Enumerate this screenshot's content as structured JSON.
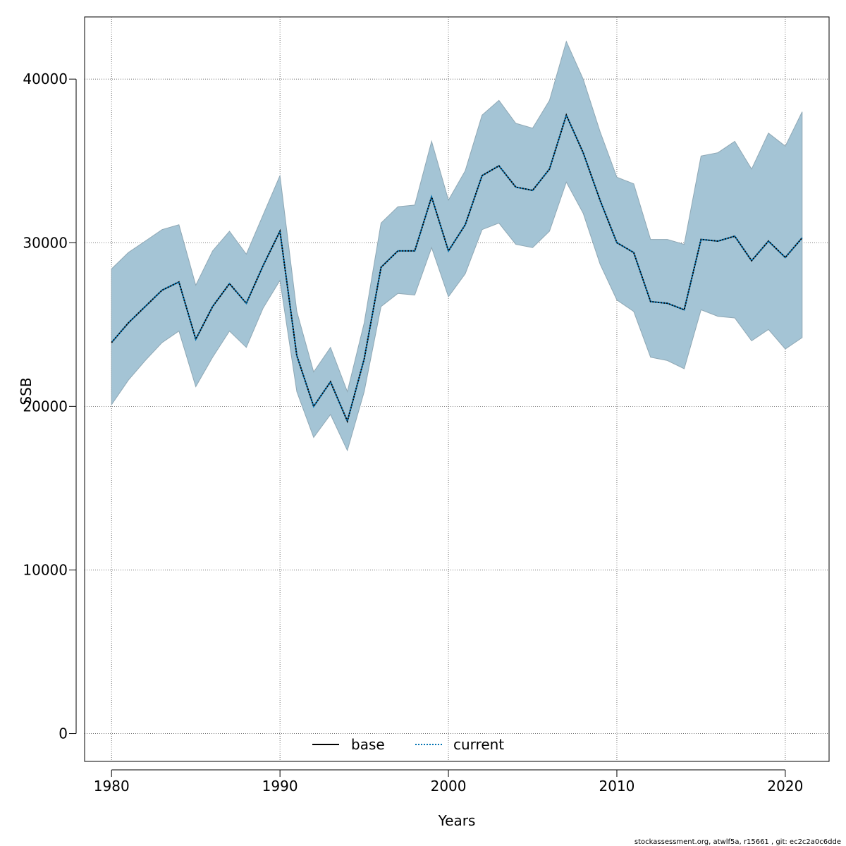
{
  "chart_data": {
    "type": "line",
    "xlabel": "Years",
    "ylabel": "SSB",
    "xlim": [
      1978.4,
      2022.6
    ],
    "ylim": [
      -1700,
      43800
    ],
    "xticks": [
      1980,
      1990,
      2000,
      2010,
      2020
    ],
    "yticks": [
      0,
      10000,
      20000,
      30000,
      40000
    ],
    "grid": true,
    "legend_position": "bottom-center",
    "legend": [
      {
        "label": "base",
        "style": "solid",
        "color": "#000000"
      },
      {
        "label": "current",
        "style": "dotted",
        "color": "#0072B2"
      }
    ],
    "band_color": "#A4C4D5",
    "x": [
      1980,
      1981,
      1982,
      1983,
      1984,
      1985,
      1986,
      1987,
      1988,
      1989,
      1990,
      1991,
      1992,
      1993,
      1994,
      1995,
      1996,
      1997,
      1998,
      1999,
      2000,
      2001,
      2002,
      2003,
      2004,
      2005,
      2006,
      2007,
      2008,
      2009,
      2010,
      2011,
      2012,
      2013,
      2014,
      2015,
      2016,
      2017,
      2018,
      2019,
      2020,
      2021
    ],
    "series": [
      {
        "name": "current",
        "style": "dotted",
        "values": [
          23900,
          25100,
          26100,
          27100,
          27600,
          24100,
          26100,
          27500,
          26300,
          28600,
          30700,
          23100,
          20000,
          21500,
          19100,
          22900,
          28500,
          29500,
          29500,
          32800,
          29500,
          31100,
          34100,
          34700,
          33400,
          33200,
          34500,
          37800,
          35500,
          32600,
          30000,
          29400,
          26400,
          26300,
          25900,
          30200,
          30100,
          30400,
          28900,
          30100,
          29100,
          30300
        ]
      },
      {
        "name": "base",
        "style": "solid",
        "values": [
          23900,
          25100,
          26100,
          27100,
          27600,
          24100,
          26100,
          27500,
          26300,
          28600,
          30700,
          23100,
          20000,
          21500,
          19100,
          22900,
          28500,
          29500,
          29500,
          32800,
          29500,
          31100,
          34100,
          34700,
          33400,
          33200,
          34500,
          37800,
          35500,
          32600,
          30000,
          29400,
          26400,
          26300,
          25900,
          30200,
          30100,
          30400,
          28900,
          30100,
          29100,
          30300
        ]
      }
    ],
    "band_upper": [
      28400,
      29400,
      30100,
      30800,
      31100,
      27400,
      29500,
      30700,
      29300,
      31700,
      34100,
      25800,
      22100,
      23600,
      20900,
      25100,
      31200,
      32200,
      32300,
      36200,
      32600,
      34400,
      37800,
      38700,
      37300,
      37000,
      38700,
      42300,
      40000,
      36800,
      34000,
      33600,
      30200,
      30200,
      29900,
      35300,
      35500,
      36200,
      34500,
      36700,
      35900,
      38000
    ],
    "band_lower": [
      20100,
      21600,
      22800,
      23900,
      24600,
      21200,
      23000,
      24600,
      23600,
      26000,
      27700,
      20900,
      18100,
      19500,
      17300,
      20900,
      26100,
      26900,
      26800,
      29700,
      26700,
      28100,
      30800,
      31200,
      29900,
      29700,
      30700,
      33700,
      31800,
      28700,
      26500,
      25800,
      23000,
      22800,
      22300,
      25900,
      25500,
      25400,
      24000,
      24700,
      23500,
      24200
    ]
  },
  "footer": "stockassessment.org, atwlf5a, r15661 , git: ec2c2a0c6dde"
}
